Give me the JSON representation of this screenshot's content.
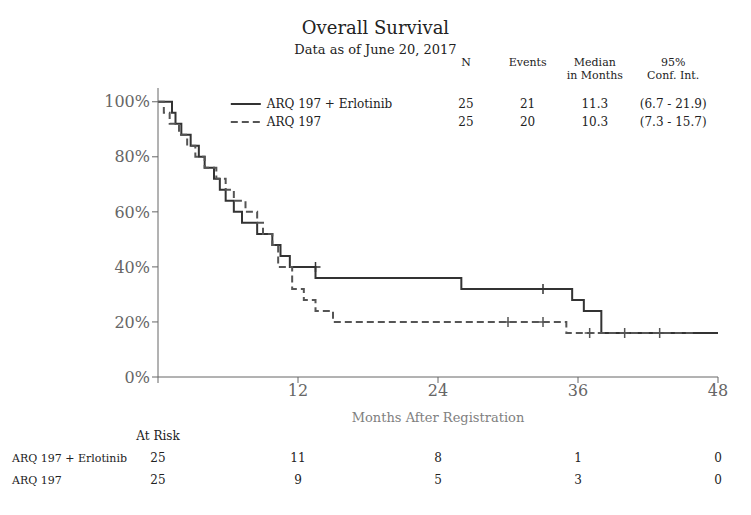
{
  "chart_data": {
    "type": "step",
    "title": "Overall Survival",
    "subtitle": "Data as of June 20, 2017",
    "xlabel": "Months After Registration",
    "xlim": [
      0,
      48
    ],
    "ylim": [
      0,
      1.05
    ],
    "xticks": [
      0,
      12,
      24,
      36,
      48
    ],
    "yticks": [
      {
        "value": 0,
        "label": "0%"
      },
      {
        "value": 0.2,
        "label": "20%"
      },
      {
        "value": 0.4,
        "label": "40%"
      },
      {
        "value": 0.6,
        "label": "60%"
      },
      {
        "value": 0.8,
        "label": "80%"
      },
      {
        "value": 1.0,
        "label": "100%"
      }
    ],
    "grid": false,
    "legend": "upper left",
    "stats_columns": [
      "N",
      "Events",
      "Median\nin Months",
      "95%\nConf. Int."
    ],
    "at_risk_label": "At Risk",
    "at_risk_x": [
      0,
      12,
      24,
      36,
      48
    ],
    "series": [
      {
        "name": "ARQ 197 + Erlotinib",
        "color": "#333333",
        "line_style": "solid",
        "marker": "plus",
        "x": [
          0,
          1.2,
          1.5,
          2.0,
          2.8,
          3.5,
          4.0,
          4.8,
          5.3,
          5.8,
          6.5,
          7.2,
          7.8,
          8.5,
          9.0,
          9.8,
          10.5,
          11.3,
          12.5,
          13.5,
          15.0,
          16.5,
          18.0,
          20.0,
          22.0,
          24.5,
          26.0,
          28.5,
          30.5,
          33.0,
          35.5,
          36.5,
          38.0,
          48.0
        ],
        "values": [
          1.0,
          0.96,
          0.92,
          0.88,
          0.84,
          0.8,
          0.76,
          0.72,
          0.68,
          0.64,
          0.6,
          0.56,
          0.56,
          0.52,
          0.52,
          0.48,
          0.44,
          0.4,
          0.4,
          0.36,
          0.36,
          0.36,
          0.36,
          0.36,
          0.36,
          0.36,
          0.32,
          0.32,
          0.32,
          0.32,
          0.28,
          0.24,
          0.16,
          0.16
        ],
        "censor_x": [
          13.5,
          33.0
        ],
        "censor_values": [
          0.4,
          0.32
        ],
        "stats": [
          25,
          21,
          11.3,
          "(6.7 - 21.9)"
        ],
        "at_risk": [
          25,
          11,
          8,
          1,
          0
        ]
      },
      {
        "name": "ARQ 197",
        "color": "#555555",
        "line_style": "dashed",
        "marker": "plus",
        "x": [
          0,
          0.5,
          1.0,
          1.8,
          2.5,
          3.2,
          4.0,
          5.0,
          5.8,
          6.5,
          7.5,
          8.5,
          9.0,
          9.8,
          10.3,
          11.5,
          12.5,
          13.5,
          15.0,
          16.5,
          18.5,
          20.5,
          21.5,
          30.0,
          35.0,
          46.0
        ],
        "values": [
          1.0,
          0.96,
          0.92,
          0.88,
          0.84,
          0.8,
          0.76,
          0.72,
          0.68,
          0.64,
          0.6,
          0.56,
          0.52,
          0.48,
          0.4,
          0.32,
          0.28,
          0.24,
          0.2,
          0.2,
          0.2,
          0.2,
          0.2,
          0.2,
          0.16,
          0.16
        ],
        "censor_x": [
          30.0,
          33.0,
          37.0,
          40.0,
          43.0
        ],
        "censor_values": [
          0.2,
          0.2,
          0.16,
          0.16,
          0.16
        ],
        "stats": [
          25,
          20,
          10.3,
          "(7.3 - 15.7)"
        ],
        "at_risk": [
          25,
          9,
          5,
          3,
          0
        ]
      }
    ]
  }
}
